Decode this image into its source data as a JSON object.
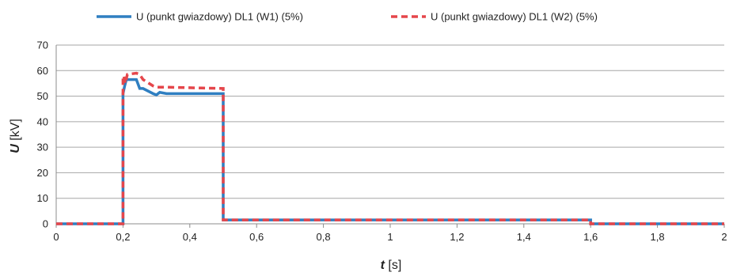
{
  "chart_data": {
    "type": "line",
    "xlim": [
      0,
      2
    ],
    "ylim": [
      0,
      70
    ],
    "x_ticks": [
      "0",
      "0,2",
      "0,4",
      "0,6",
      "0,8",
      "1",
      "1,2",
      "1,4",
      "1,6",
      "1,8",
      "2"
    ],
    "y_ticks": [
      "0",
      "10",
      "20",
      "30",
      "40",
      "50",
      "60",
      "70"
    ],
    "xlabel": {
      "symbol": "t",
      "unit": " [s]"
    },
    "ylabel": {
      "symbol": "U",
      "unit": " [kV]"
    },
    "grid": "horizontal",
    "legend_position": "top",
    "series": [
      {
        "name": "U (punkt gwiazdowy) DL1 (W1) (5%)",
        "color": "#2f7fc1",
        "style": "solid",
        "points": [
          [
            0,
            0
          ],
          [
            0.2,
            0
          ],
          [
            0.2,
            51
          ],
          [
            0.205,
            54
          ],
          [
            0.21,
            56.5
          ],
          [
            0.24,
            56.5
          ],
          [
            0.25,
            53
          ],
          [
            0.26,
            53
          ],
          [
            0.29,
            51
          ],
          [
            0.3,
            50.5
          ],
          [
            0.31,
            51.5
          ],
          [
            0.33,
            51
          ],
          [
            0.5,
            51
          ],
          [
            0.5,
            1.5
          ],
          [
            1.6,
            1.5
          ],
          [
            1.6,
            0
          ],
          [
            2,
            0
          ]
        ]
      },
      {
        "name": "U (punkt gwiazdowy) DL1 (W2) (5%)",
        "color": "#e5464b",
        "style": "dashed",
        "points": [
          [
            0,
            0
          ],
          [
            0.2,
            0
          ],
          [
            0.2,
            57
          ],
          [
            0.202,
            58
          ],
          [
            0.207,
            55
          ],
          [
            0.213,
            58.5
          ],
          [
            0.24,
            59
          ],
          [
            0.25,
            58.5
          ],
          [
            0.26,
            56.5
          ],
          [
            0.29,
            54
          ],
          [
            0.3,
            53.5
          ],
          [
            0.33,
            53.5
          ],
          [
            0.5,
            53
          ],
          [
            0.5,
            1.5
          ],
          [
            1.6,
            1.5
          ],
          [
            1.6,
            0
          ],
          [
            2,
            0
          ]
        ]
      }
    ]
  }
}
